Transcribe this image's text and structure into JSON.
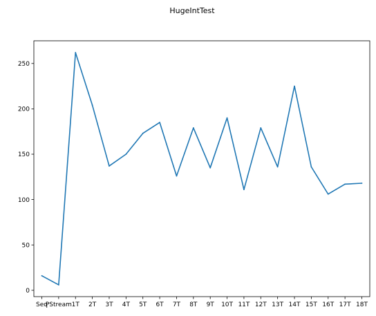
{
  "chart_data": {
    "type": "line",
    "title": "HugeIntTest",
    "xlabel": "",
    "ylabel": "",
    "categories": [
      "Seq",
      "PStream",
      "1T",
      "2T",
      "3T",
      "4T",
      "5T",
      "6T",
      "7T",
      "8T",
      "9T",
      "10T",
      "11T",
      "12T",
      "13T",
      "14T",
      "15T",
      "16T",
      "17T",
      "18T"
    ],
    "series": [
      {
        "values": [
          16,
          6,
          262,
          204,
          137,
          150,
          173,
          185,
          126,
          179,
          135,
          190,
          111,
          179,
          136,
          225,
          136,
          106,
          117,
          118
        ],
        "color": "#1f77b4"
      }
    ],
    "ylim": [
      -7,
      275
    ],
    "yticks": [
      0,
      50,
      100,
      150,
      200,
      250
    ],
    "grid": false,
    "legend": "none"
  }
}
